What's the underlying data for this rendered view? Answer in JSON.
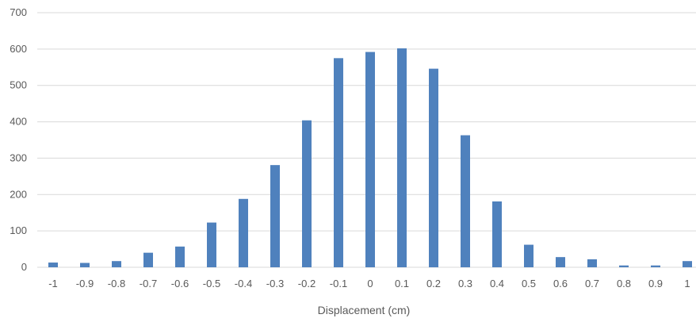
{
  "chart_data": {
    "type": "bar",
    "title": "",
    "xlabel": "Displacement (cm)",
    "ylabel": "",
    "categories": [
      "-1",
      "-0.9",
      "-0.8",
      "-0.7",
      "-0.6",
      "-0.5",
      "-0.4",
      "-0.3",
      "-0.2",
      "-0.1",
      "0",
      "0.1",
      "0.2",
      "0.3",
      "0.4",
      "0.5",
      "0.6",
      "0.7",
      "0.8",
      "0.9",
      "1"
    ],
    "values": [
      13,
      12,
      17,
      40,
      57,
      123,
      188,
      281,
      404,
      575,
      592,
      602,
      546,
      363,
      181,
      62,
      28,
      22,
      5,
      5,
      17
    ],
    "ylim": [
      0,
      700
    ],
    "yticks": [
      0,
      100,
      200,
      300,
      400,
      500,
      600,
      700
    ],
    "grid": true,
    "legend": "none",
    "colors": {
      "bar": "#4F81BD",
      "grid": "#D9D9D9",
      "text": "#595959"
    }
  }
}
